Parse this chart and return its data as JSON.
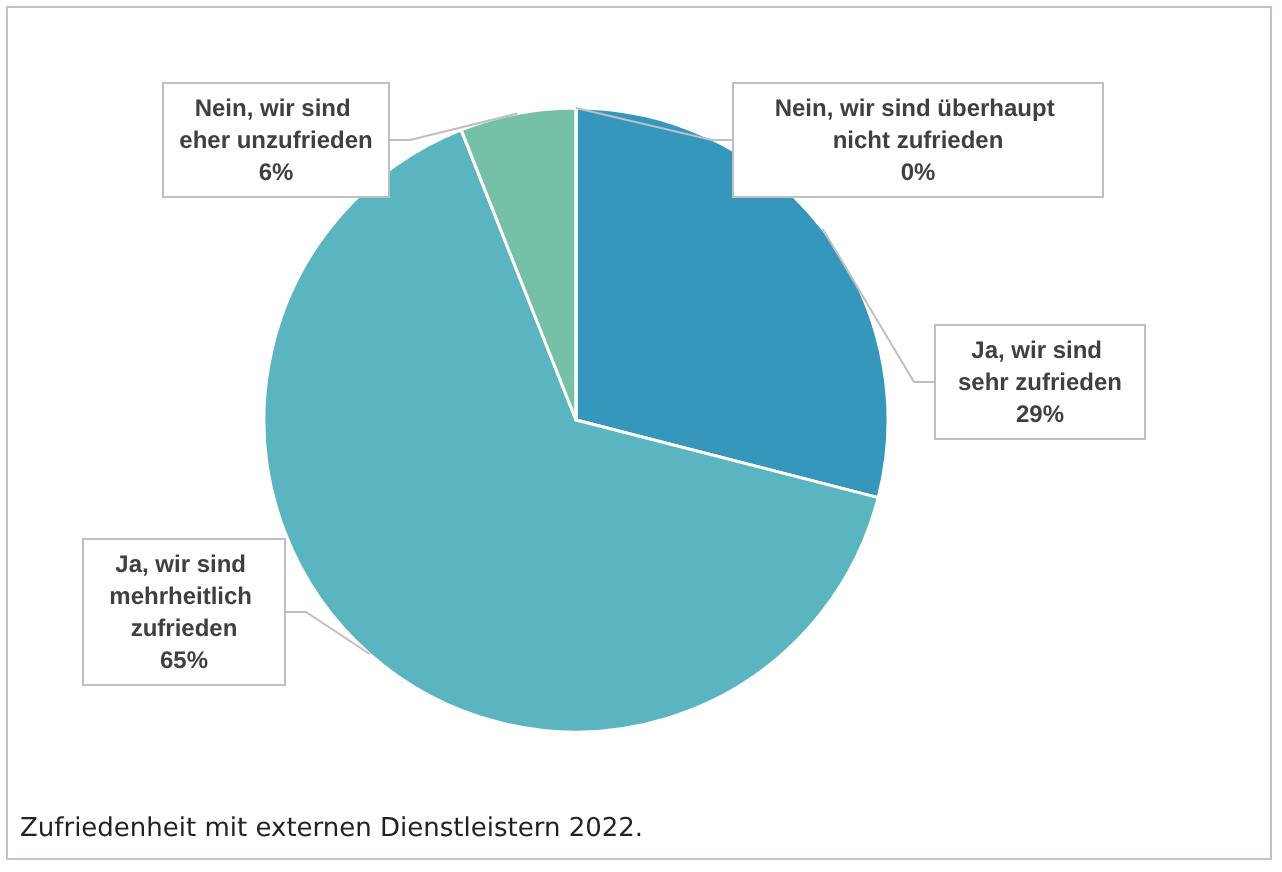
{
  "chart_data": {
    "type": "pie",
    "categories": [
      "Ja, wir sind sehr zufrieden",
      "Ja, wir sind mehrheitlich zufrieden",
      "Nein, wir sind eher unzufrieden",
      "Nein, wir sind überhaupt nicht zufrieden"
    ],
    "values": [
      29,
      65,
      6,
      0
    ],
    "value_labels": [
      "29%",
      "65%",
      "6%",
      "0%"
    ],
    "colors": [
      "#3697bd",
      "#5ab5c0",
      "#77c0a8",
      "#4f81bd"
    ],
    "annotations": [
      "Zufriedenheit mit externen Dienstleistern 2022."
    ],
    "legend": false
  }
}
